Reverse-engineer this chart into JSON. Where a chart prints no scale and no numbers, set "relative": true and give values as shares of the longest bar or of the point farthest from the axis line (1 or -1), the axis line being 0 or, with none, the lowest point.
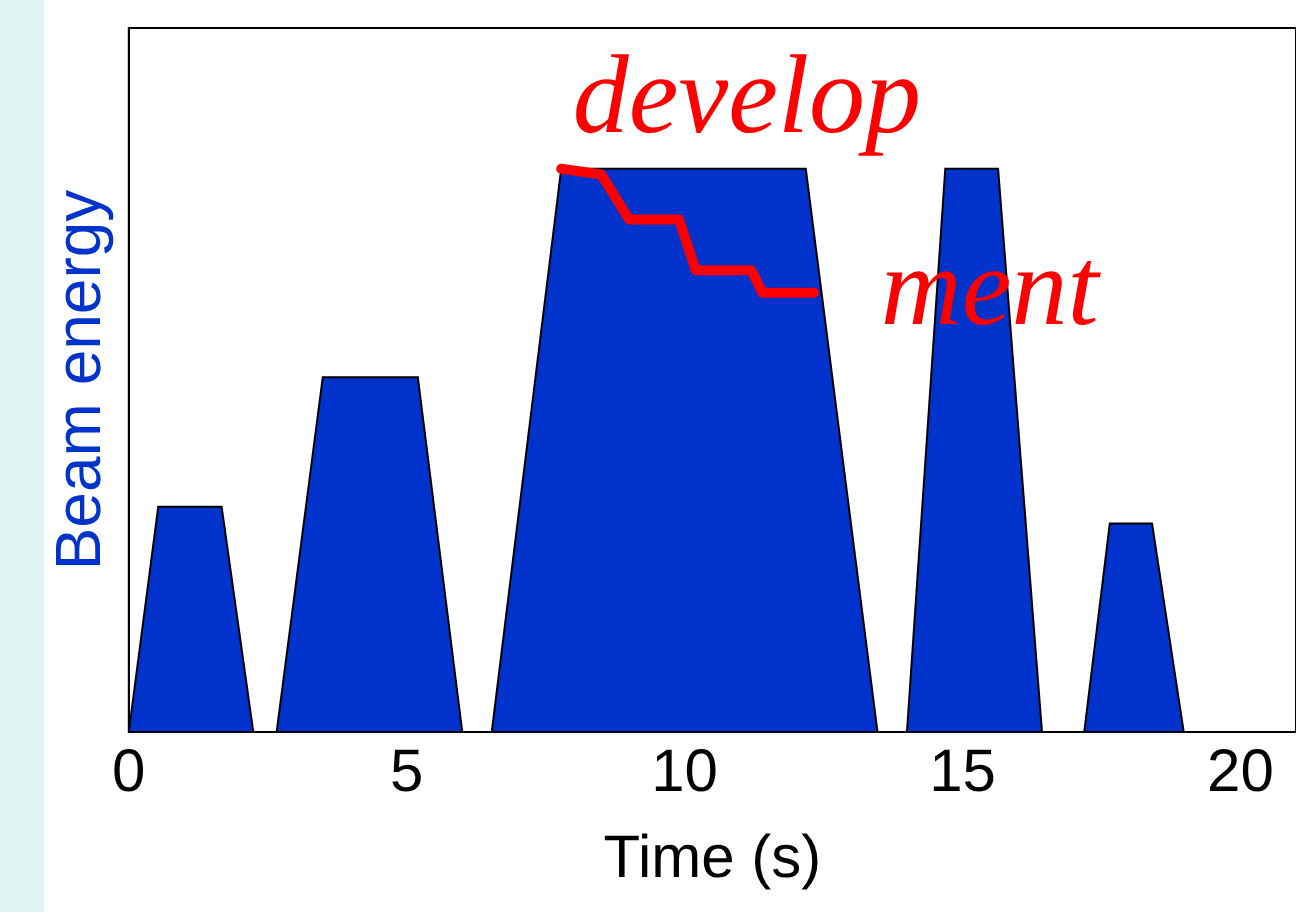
{
  "chart_data": {
    "type": "area",
    "relative": true,
    "xlabel": "Time (s)",
    "ylabel": "Beam energy",
    "xlim": [
      0,
      21
    ],
    "xticks": [
      0,
      5,
      10,
      15,
      20
    ],
    "grid": false,
    "legend": false,
    "annotations": [
      "develop",
      "ment"
    ],
    "series": [
      {
        "color": "#0033cc",
        "x": [
          0,
          0.53,
          1.67,
          2.24,
          2.66,
          3.49,
          5.2,
          6.0,
          6.53,
          7.78,
          12.18,
          13.47,
          14.0,
          14.69,
          15.64,
          16.43,
          17.19,
          17.65,
          18.41,
          18.98
        ],
        "values": [
          0,
          0.4,
          0.4,
          0,
          0,
          0.63,
          0.63,
          0,
          0,
          1,
          1,
          0,
          0,
          1,
          1,
          0,
          0,
          0.37,
          0.37,
          0
        ]
      },
      {
        "type": "line",
        "color": "#ff0000",
        "x": [
          7.78,
          8.5,
          9.0,
          9.9,
          10.2,
          11.2,
          11.4,
          12.33
        ],
        "values": [
          1,
          0.99,
          0.91,
          0.91,
          0.82,
          0.82,
          0.78,
          0.78
        ]
      }
    ]
  }
}
